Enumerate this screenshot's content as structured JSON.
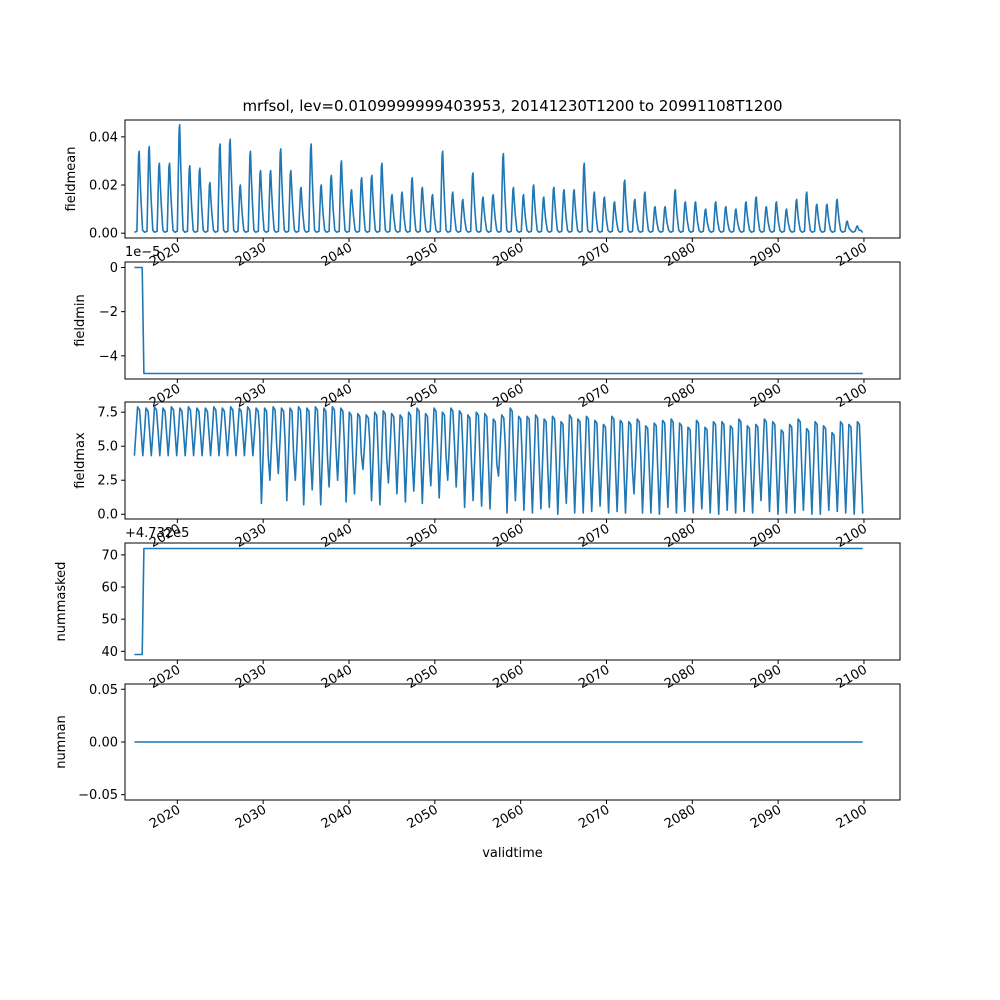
{
  "figure": {
    "title": "mrfsol, lev=0.0109999999403953, 20141230T1200 to 20991108T1200",
    "xlabel": "validtime",
    "line_color": "#1f77b4"
  },
  "x_axis": {
    "ticks": [
      2020,
      2030,
      2040,
      2050,
      2060,
      2070,
      2080,
      2090,
      2100
    ],
    "tick_labels": [
      "2020",
      "2030",
      "2040",
      "2050",
      "2060",
      "2070",
      "2080",
      "2090",
      "2100"
    ],
    "range": [
      2013.9,
      2104.2
    ]
  },
  "chart_data": [
    {
      "type": "line",
      "ylabel": "fieldmean",
      "ylim": [
        -0.002,
        0.047
      ],
      "yticks": [
        0.0,
        0.02,
        0.04
      ],
      "ytick_labels": [
        "0.00",
        "0.02",
        "0.04"
      ],
      "series_kind": "seasonal",
      "peaks": [
        0.034,
        0.036,
        0.029,
        0.029,
        0.045,
        0.028,
        0.027,
        0.021,
        0.037,
        0.039,
        0.02,
        0.034,
        0.026,
        0.026,
        0.035,
        0.026,
        0.019,
        0.037,
        0.02,
        0.024,
        0.03,
        0.018,
        0.023,
        0.024,
        0.029,
        0.016,
        0.017,
        0.023,
        0.019,
        0.016,
        0.034,
        0.017,
        0.014,
        0.025,
        0.015,
        0.016,
        0.033,
        0.019,
        0.016,
        0.02,
        0.015,
        0.019,
        0.018,
        0.018,
        0.029,
        0.017,
        0.015,
        0.013,
        0.022,
        0.014,
        0.017,
        0.011,
        0.011,
        0.018,
        0.013,
        0.013,
        0.01,
        0.013,
        0.011,
        0.01,
        0.013,
        0.015,
        0.011,
        0.013,
        0.01,
        0.014,
        0.017,
        0.012,
        0.012,
        0.014,
        0.005,
        0.003
      ],
      "x_start": 2014.99,
      "x_end": 2099.85
    },
    {
      "type": "line",
      "ylabel": "fieldmin",
      "offset_text": "1e−5",
      "ylim": [
        -5.05,
        0.25
      ],
      "yticks": [
        0,
        -2,
        -4
      ],
      "ytick_labels": [
        "0",
        "−2",
        "−4"
      ],
      "x": [
        2014.99,
        2015.9,
        2016.1,
        2099.85
      ],
      "y": [
        0,
        0,
        -4.8,
        -4.8
      ]
    },
    {
      "type": "line",
      "ylabel": "fieldmax",
      "ylim": [
        -0.35,
        8.25
      ],
      "yticks": [
        0.0,
        2.5,
        5.0,
        7.5
      ],
      "ytick_labels": [
        "0.0",
        "2.5",
        "5.0",
        "7.5"
      ],
      "series_kind": "seasonal",
      "troughs": [
        4.3,
        4.3,
        4.3,
        4.3,
        4.3,
        4.3,
        4.3,
        4.3,
        4.3,
        4.3,
        4.3,
        4.3,
        4.3,
        4.3,
        4.3,
        0.8,
        2.5,
        3.0,
        1.0,
        2.5,
        0.7,
        1.8,
        0.7,
        2.0,
        2.5,
        0.9,
        1.5,
        3.3,
        1.0,
        0.7,
        2.3,
        1.5,
        0.9,
        1.7,
        0.8,
        2.1,
        1.2,
        2.5,
        2.0,
        0.5,
        1.0,
        0.6,
        0.4,
        2.8,
        0.1,
        1.0,
        0.3,
        0.1,
        0.4,
        0.5,
        0.0,
        0.8,
        0.1,
        0.1,
        0.2,
        0.6,
        0.1,
        0.2,
        0.1,
        1.5,
        0.1,
        0.1,
        0.0,
        0.5,
        0.1,
        0.2,
        0.1,
        0.4,
        0.1,
        0.0,
        0.3,
        0.1,
        0.2,
        0.1,
        1.0,
        0.2,
        0.0,
        0.1,
        0.1,
        0.3,
        0.0,
        0.0,
        0.3,
        0.2,
        0.1,
        0.0
      ],
      "peaks": [
        7.9,
        7.8,
        7.9,
        7.8,
        7.9,
        7.8,
        7.9,
        7.8,
        7.8,
        7.9,
        7.8,
        7.9,
        7.8,
        7.9,
        7.8,
        7.8,
        7.9,
        7.8,
        7.8,
        7.9,
        7.8,
        7.9,
        7.8,
        7.9,
        7.8,
        7.5,
        7.4,
        7.3,
        7.5,
        7.6,
        7.4,
        7.3,
        7.5,
        7.8,
        7.4,
        7.8,
        7.5,
        7.8,
        7.6,
        7.3,
        7.5,
        7.4,
        7.0,
        7.3,
        7.8,
        7.2,
        7.2,
        7.3,
        7.0,
        7.2,
        6.8,
        7.3,
        7.0,
        7.2,
        6.9,
        6.6,
        7.2,
        6.9,
        6.8,
        7.0,
        6.5,
        6.7,
        6.9,
        7.0,
        6.7,
        6.4,
        6.9,
        6.4,
        6.8,
        6.8,
        6.5,
        7.0,
        6.5,
        6.6,
        7.0,
        6.8,
        6.2,
        6.6,
        7.0,
        6.3,
        6.8,
        6.5,
        6.0,
        6.8,
        6.6,
        6.8
      ],
      "x_start": 2014.99,
      "x_end": 2099.85
    },
    {
      "type": "line",
      "ylabel": "nummasked",
      "offset_text": "+4.732e5",
      "ylim": [
        37.3,
        73.7
      ],
      "yticks": [
        40,
        50,
        60,
        70
      ],
      "ytick_labels": [
        "40",
        "50",
        "60",
        "70"
      ],
      "x": [
        2014.99,
        2015.9,
        2016.1,
        2099.85
      ],
      "y": [
        39,
        39,
        72,
        72
      ]
    },
    {
      "type": "line",
      "ylabel": "numnan",
      "ylim": [
        -0.055,
        0.055
      ],
      "yticks": [
        0.05,
        0.0,
        -0.05
      ],
      "ytick_labels": [
        "0.05",
        "0.00",
        "−0.05"
      ],
      "x": [
        2014.99,
        2099.85
      ],
      "y": [
        0,
        0
      ]
    }
  ]
}
